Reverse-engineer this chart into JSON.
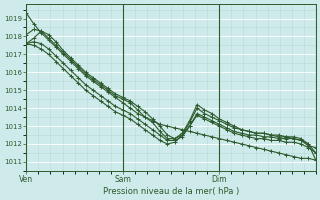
{
  "title": "Pression niveau de la mer( hPa )",
  "bg_color": "#ceeaea",
  "grid_color_major": "#ffffff",
  "grid_color_minor": "#b8dada",
  "line_color": "#2d5a2d",
  "tick_color": "#2d5a2d",
  "ylim": [
    1010.5,
    1019.8
  ],
  "xlim": [
    0,
    72
  ],
  "vline_positions": [
    0,
    24,
    48,
    72
  ],
  "day_labels": [
    "Ven",
    "Sam",
    "Dim"
  ],
  "day_positions": [
    0,
    24,
    48
  ],
  "series": [
    [
      1019.3,
      1018.7,
      1018.2,
      1017.8,
      1017.4,
      1017.0,
      1016.6,
      1016.2,
      1015.8,
      1015.5,
      1015.2,
      1014.9,
      1014.6,
      1014.3,
      1014.0,
      1013.7,
      1013.5,
      1013.3,
      1013.1,
      1013.0,
      1012.9,
      1012.8,
      1012.7,
      1012.6,
      1012.5,
      1012.4,
      1012.3,
      1012.2,
      1012.1,
      1012.0,
      1011.9,
      1011.8,
      1011.7,
      1011.6,
      1011.5,
      1011.4,
      1011.3,
      1011.2,
      1011.2,
      1011.1
    ],
    [
      1018.1,
      1018.4,
      1018.3,
      1017.9,
      1017.5,
      1017.1,
      1016.7,
      1016.3,
      1015.9,
      1015.6,
      1015.3,
      1015.0,
      1014.7,
      1014.5,
      1014.3,
      1013.9,
      1013.5,
      1013.2,
      1012.7,
      1012.3,
      1012.3,
      1012.5,
      1013.2,
      1014.0,
      1013.7,
      1013.5,
      1013.3,
      1013.1,
      1012.9,
      1012.8,
      1012.7,
      1012.6,
      1012.6,
      1012.5,
      1012.4,
      1012.4,
      1012.3,
      1012.2,
      1012.0,
      1011.1
    ],
    [
      1017.6,
      1017.9,
      1018.3,
      1018.1,
      1017.7,
      1017.2,
      1016.8,
      1016.4,
      1016.0,
      1015.7,
      1015.4,
      1015.1,
      1014.8,
      1014.6,
      1014.4,
      1014.1,
      1013.8,
      1013.4,
      1013.0,
      1012.5,
      1012.3,
      1012.6,
      1013.3,
      1014.2,
      1013.9,
      1013.7,
      1013.4,
      1013.2,
      1013.0,
      1012.8,
      1012.7,
      1012.6,
      1012.6,
      1012.5,
      1012.5,
      1012.4,
      1012.4,
      1012.3,
      1012.0,
      1011.5
    ],
    [
      1017.6,
      1017.7,
      1017.6,
      1017.3,
      1016.9,
      1016.5,
      1016.1,
      1015.7,
      1015.3,
      1015.0,
      1014.7,
      1014.4,
      1014.1,
      1013.9,
      1013.7,
      1013.4,
      1013.1,
      1012.8,
      1012.5,
      1012.2,
      1012.2,
      1012.4,
      1013.0,
      1013.7,
      1013.5,
      1013.3,
      1013.1,
      1012.9,
      1012.7,
      1012.6,
      1012.5,
      1012.5,
      1012.4,
      1012.4,
      1012.3,
      1012.3,
      1012.3,
      1012.2,
      1011.9,
      1011.8
    ],
    [
      1017.6,
      1017.5,
      1017.3,
      1017.0,
      1016.6,
      1016.2,
      1015.8,
      1015.4,
      1015.0,
      1014.7,
      1014.4,
      1014.1,
      1013.8,
      1013.6,
      1013.4,
      1013.1,
      1012.8,
      1012.5,
      1012.2,
      1012.0,
      1012.1,
      1012.5,
      1013.0,
      1013.6,
      1013.4,
      1013.2,
      1013.0,
      1012.8,
      1012.6,
      1012.5,
      1012.4,
      1012.3,
      1012.3,
      1012.2,
      1012.2,
      1012.1,
      1012.1,
      1012.0,
      1011.8,
      1011.5
    ]
  ]
}
